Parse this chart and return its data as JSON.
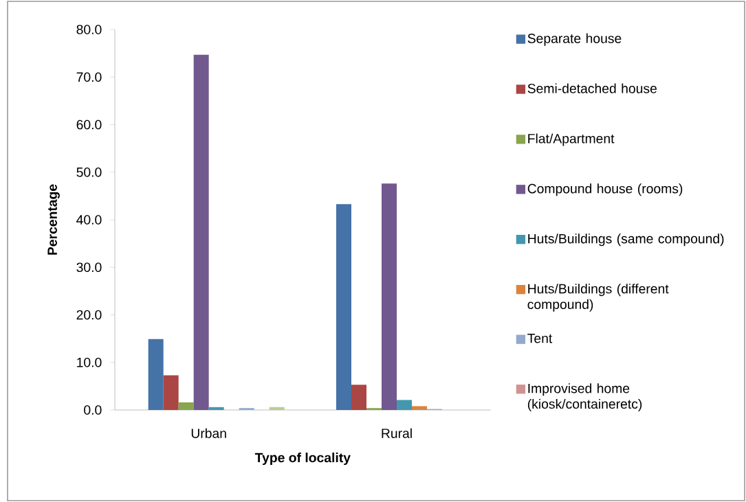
{
  "chart_data": {
    "type": "bar",
    "xlabel": "Type of locality",
    "ylabel": "Percentage",
    "categories": [
      "Urban",
      "Rural"
    ],
    "series": [
      {
        "name": "Separate house",
        "color": "#4572a7",
        "values": [
          14.9,
          43.3
        ]
      },
      {
        "name": "Semi-detached house",
        "color": "#aa4643",
        "values": [
          7.3,
          5.3
        ]
      },
      {
        "name": "Flat/Apartment",
        "color": "#89a54e",
        "values": [
          1.6,
          0.4
        ]
      },
      {
        "name": "Compound house (rooms)",
        "color": "#71588f",
        "values": [
          74.7,
          47.6
        ]
      },
      {
        "name": "Huts/Buildings (same compound)",
        "color": "#4198af",
        "values": [
          0.6,
          2.1
        ]
      },
      {
        "name": "Huts/Buildings (different compound)",
        "color": "#db843d",
        "values": [
          0,
          0.8
        ]
      },
      {
        "name": "Tent",
        "color": "#93a9cf",
        "values": [
          0.4,
          0.2
        ]
      },
      {
        "name": "Improvised home (kiosk/containeretc)",
        "color": "#d19392",
        "values": [
          0,
          0
        ]
      },
      {
        "color": "#b9cd96",
        "values": [
          0.6,
          0
        ]
      }
    ],
    "ylim": [
      0,
      80
    ],
    "yticks": [
      {
        "value": 0,
        "label": "0.0"
      },
      {
        "value": 10,
        "label": "10.0"
      },
      {
        "value": 20,
        "label": "20.0"
      },
      {
        "value": 30,
        "label": "30.0"
      },
      {
        "value": 40,
        "label": "40.0"
      },
      {
        "value": 50,
        "label": "50.0"
      },
      {
        "value": 60,
        "label": "60.0"
      },
      {
        "value": 70,
        "label": "70.0"
      },
      {
        "value": 80,
        "label": "80.0"
      }
    ],
    "grid": false,
    "legend": "right"
  }
}
